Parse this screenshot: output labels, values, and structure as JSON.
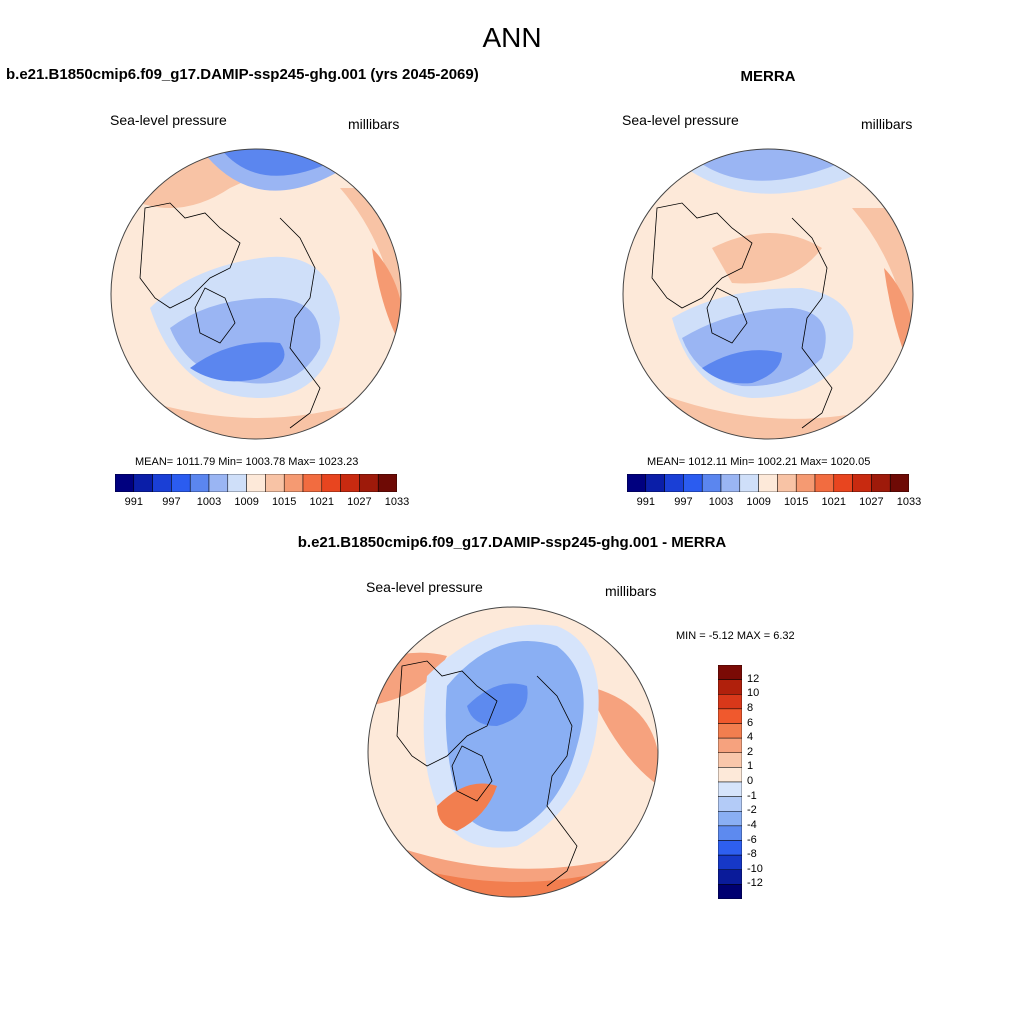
{
  "page": {
    "title": "ANN"
  },
  "left_panel": {
    "title": "b.e21.B1850cmip6.f09_g17.DAMIP-ssp245-ghg.001 (yrs 2045-2069)",
    "variable": "Sea-level pressure",
    "units": "millibars",
    "stats": "MEAN= 1011.79  Min= 1003.78  Max= 1023.23"
  },
  "right_panel": {
    "title": "MERRA",
    "variable": "Sea-level pressure",
    "units": "millibars",
    "stats": "MEAN= 1012.11  Min= 1002.21  Max= 1020.05"
  },
  "abs_colorbar": {
    "tick_labels": [
      "991",
      "997",
      "1003",
      "1009",
      "1015",
      "1021",
      "1027",
      "1033"
    ],
    "colors": [
      "#00007f",
      "#0a1ea8",
      "#1a3fd6",
      "#2b5cf0",
      "#5b86ef",
      "#9ab5f3",
      "#cfdff9",
      "#fde9d9",
      "#f8c3a5",
      "#f59a72",
      "#f26c40",
      "#e8451f",
      "#c82a10",
      "#9e1a0a",
      "#6e0a05"
    ]
  },
  "diff_panel": {
    "title": "b.e21.B1850cmip6.f09_g17.DAMIP-ssp245-ghg.001 - MERRA",
    "variable": "Sea-level pressure",
    "units": "millibars",
    "stats": "MIN =  -5.12 MAX =   6.32"
  },
  "diff_colorbar": {
    "tick_labels": [
      "12",
      "10",
      "8",
      "6",
      "4",
      "2",
      "1",
      "0",
      "-1",
      "-2",
      "-4",
      "-6",
      "-8",
      "-10",
      "-12"
    ],
    "colors": [
      "#7a0a05",
      "#b0200c",
      "#d8381a",
      "#f0592d",
      "#f27e4f",
      "#f6a27e",
      "#f9c7ab",
      "#fde9d9",
      "#d6e4fb",
      "#b3cbf7",
      "#8aaff3",
      "#5d8aef",
      "#2e5ff0",
      "#1638c8",
      "#0a1b9a",
      "#000070"
    ]
  },
  "map_palette": {
    "ocean_border": "#444444",
    "coast": "#000000",
    "abs_low_deep": "#5b86ef",
    "abs_low": "#9ab5f3",
    "abs_low_light": "#cfdff9",
    "abs_mid": "#fde9d9",
    "abs_high": "#f8c3a5",
    "abs_high_deep": "#f59a72",
    "diff_neg_deep": "#5d8aef",
    "diff_neg": "#8aaff3",
    "diff_neg_light": "#d6e4fb",
    "diff_zero": "#fde9d9",
    "diff_pos": "#f6a27e",
    "diff_pos_deep": "#f27e4f"
  }
}
